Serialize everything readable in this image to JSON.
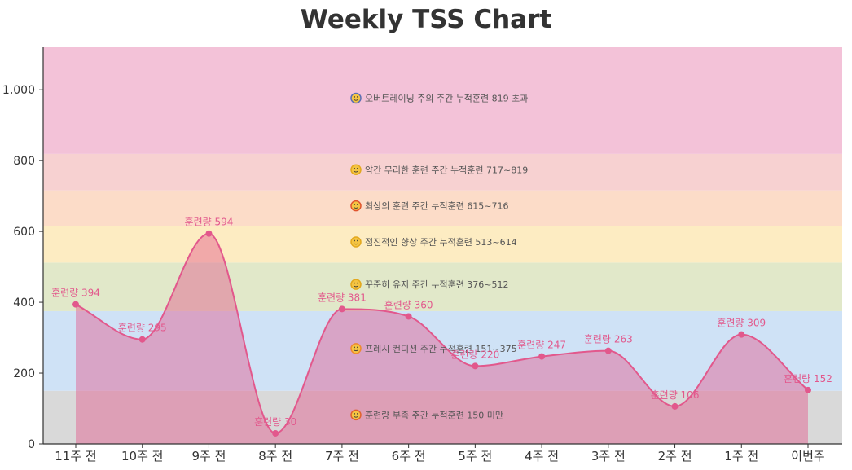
{
  "chart_data": {
    "type": "area",
    "title": "Weekly TSS Chart",
    "categories": [
      "11주 전",
      "10주 전",
      "9주 전",
      "8주 전",
      "7주 전",
      "6주 전",
      "5주 전",
      "4주 전",
      "3주 전",
      "2주 전",
      "1주 전",
      "이번주"
    ],
    "series": [
      {
        "values": [
          394,
          295,
          594,
          30,
          381,
          360,
          220,
          247,
          263,
          106,
          309,
          152
        ],
        "point_label_prefix": "훈련량",
        "color": "#e2588c"
      }
    ],
    "ylim": [
      0,
      1120
    ],
    "yticks": [
      0,
      200,
      400,
      600,
      800,
      1000
    ],
    "ytick_labels": [
      "0",
      "200",
      "400",
      "600",
      "800",
      "1,000"
    ],
    "zones": [
      {
        "from": 0,
        "to": 150,
        "color": "#d9d9d9",
        "icon": "pouting-face-icon",
        "label": "훈련량 부족 주간 누적훈련 150 미만"
      },
      {
        "from": 150,
        "to": 375,
        "color": "#cfe2f6",
        "icon": "smiling-face-icon",
        "label": "프레시 컨디션 주간 누적훈련 151~375"
      },
      {
        "from": 375,
        "to": 512,
        "color": "#e1e8c9",
        "icon": "grinning-face-icon",
        "label": "꾸준히 유지 주간 누적훈련 376~512"
      },
      {
        "from": 512,
        "to": 615,
        "color": "#fdecc2",
        "icon": "smiling-face-icon",
        "label": "점진적인 향상 주간 누적훈련 513~614"
      },
      {
        "from": 615,
        "to": 716,
        "color": "#fcdcc8",
        "icon": "fire-face-icon",
        "label": "최상의 훈련 주간 누적훈련 615~716"
      },
      {
        "from": 716,
        "to": 819,
        "color": "#f7d1d1",
        "icon": "grimacing-face-icon",
        "label": "약간 무리한 훈련 주간 누적훈련 717~819"
      },
      {
        "from": 819,
        "to": 1120,
        "color": "#f3c2d8",
        "icon": "screaming-face-icon",
        "label": "오버트레이닝 주의 주간 누적훈련 819 초과"
      }
    ],
    "grid": false,
    "legend": "none"
  }
}
